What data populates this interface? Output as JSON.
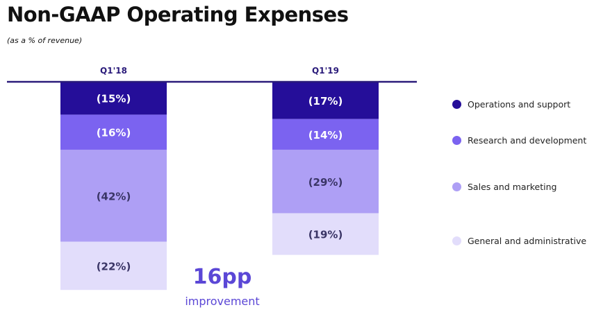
{
  "chart_data": {
    "type": "bar",
    "stacked": true,
    "title": "Non-GAAP Operating Expenses",
    "subtitle": "(as a % of revenue)",
    "categories": [
      "Q1'18",
      "Q1'19"
    ],
    "series": [
      {
        "name": "Operations and support",
        "color": "#250e99",
        "values": [
          15,
          17
        ],
        "labels": [
          "(15%)",
          "(17%)"
        ],
        "label_color": "#ffffff"
      },
      {
        "name": "Research and development",
        "color": "#7b63f0",
        "values": [
          16,
          14
        ],
        "labels": [
          "(16%)",
          "(14%)"
        ],
        "label_color": "#ffffff"
      },
      {
        "name": "Sales and marketing",
        "color": "#ae9ff5",
        "values": [
          42,
          29
        ],
        "labels": [
          "(42%)",
          "(29%)"
        ],
        "label_color": "#3a3566"
      },
      {
        "name": "General and administrative",
        "color": "#e2ddfb",
        "values": [
          22,
          19
        ],
        "labels": [
          "(22%)",
          "(19%)"
        ],
        "label_color": "#3a3566"
      }
    ],
    "legend_position": "right",
    "annotation": {
      "value": "16pp",
      "text": "improvement"
    }
  }
}
